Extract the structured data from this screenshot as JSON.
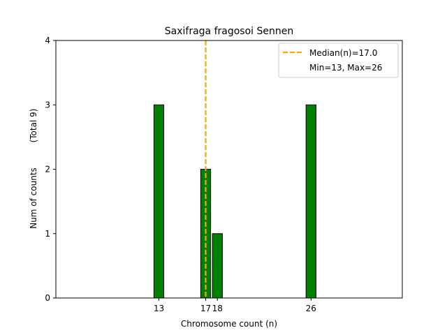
{
  "chart_data": {
    "type": "bar",
    "title": "Saxifraga fragosoi Sennen",
    "xlabel": "Chromosome count (n)",
    "ylabel": "Num of counts",
    "ylabel_note": "(Total 9)",
    "xlim": [
      4.2,
      33.8
    ],
    "ylim": [
      0,
      4
    ],
    "yticks": [
      0,
      1,
      2,
      3,
      4
    ],
    "xticks": [
      13,
      17,
      18,
      26
    ],
    "bars": [
      {
        "x": 13,
        "value": 3
      },
      {
        "x": 17,
        "value": 2
      },
      {
        "x": 18,
        "value": 1
      },
      {
        "x": 26,
        "value": 3
      }
    ],
    "bar_width": 0.85,
    "bar_color": "#008000",
    "bar_edge_color": "#000000",
    "baseline_extent": [
      13,
      31
    ],
    "median": 17.0,
    "median_color": "#ffa500",
    "legend": {
      "placement": "top-right",
      "entries": [
        "Median(n)=17.0",
        "Min=13, Max=26"
      ]
    },
    "grid": false
  }
}
